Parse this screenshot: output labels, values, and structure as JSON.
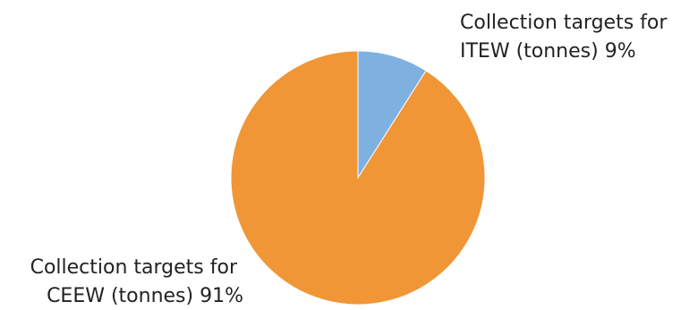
{
  "chart_data": {
    "type": "pie",
    "slices": [
      {
        "label_lines": [
          "Collection targets for",
          "ITEW (tonnes) 9%"
        ],
        "value": 9,
        "color": "#7EB1E0"
      },
      {
        "label_lines": [
          "Collection targets for",
          "CEEW (tonnes) 91%"
        ],
        "value": 91,
        "color": "#F09637"
      }
    ],
    "start_angle_deg": 0,
    "direction": "clockwise",
    "legend": "none"
  }
}
